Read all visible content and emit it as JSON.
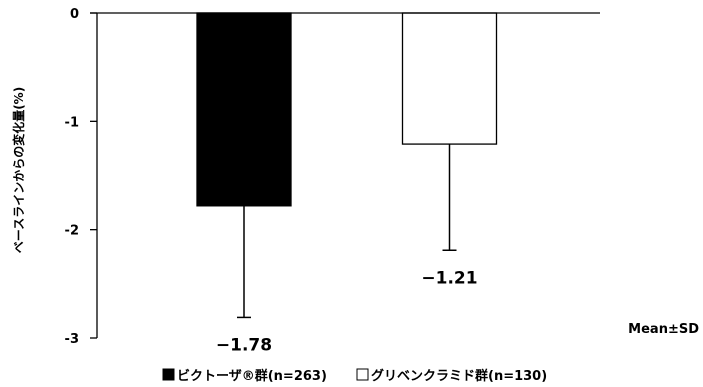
{
  "chart_data": {
    "type": "bar",
    "categories": [
      "ビクトーザ®群(n=263)",
      "グリベンクラミド群(n=130)"
    ],
    "values": [
      -1.78,
      -1.21
    ],
    "error_sd": [
      1.03,
      0.98
    ],
    "data_labels": [
      "−1.78",
      "−1.21"
    ],
    "bar_colors": [
      "#000000",
      "#ffffff"
    ],
    "ylabel": "ベースラインからの変化量(%)",
    "ylim": [
      -3,
      0
    ],
    "yticks": [
      0,
      -1,
      -2,
      -3
    ],
    "annotation": "Mean±SD",
    "legend": {
      "position": "bottom"
    },
    "grid": false
  }
}
